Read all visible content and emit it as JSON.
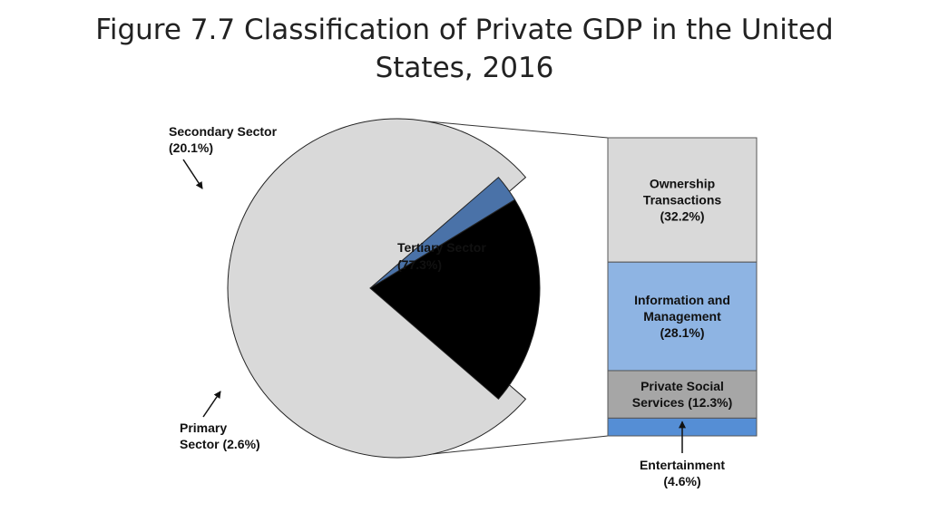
{
  "title": {
    "line1": "Figure 7.7 Classification of Private GDP in the United",
    "line2": "States, 2016"
  },
  "chart_data": [
    {
      "type": "pie",
      "slices": [
        {
          "name": "Tertiary Sector",
          "value": 77.3,
          "label_name": "Tertiary Sector",
          "label_value": "(77.3%)",
          "color": "#d9d9d9"
        },
        {
          "name": "Secondary Sector",
          "value": 20.1,
          "label_name": "Secondary Sector",
          "label_value": "(20.1%)",
          "color": "#000000"
        },
        {
          "name": "Primary Sector",
          "value": 2.6,
          "label_name": "Primary",
          "label_value": "Sector (2.6%)",
          "color": "#4a72a8"
        }
      ],
      "exploded": [
        "Secondary Sector",
        "Primary Sector"
      ]
    },
    {
      "type": "bar",
      "stacked": true,
      "detail_of": "Tertiary Sector",
      "segments": [
        {
          "name": "Ownership Transactions",
          "value": 32.2,
          "lines": [
            "Ownership",
            "Transactions",
            "(32.2%)"
          ],
          "color": "#d9d9d9"
        },
        {
          "name": "Information and Management",
          "value": 28.1,
          "lines": [
            "Information and",
            "Management",
            "(28.1%)"
          ],
          "color": "#8eb4e3"
        },
        {
          "name": "Private Social Services",
          "value": 12.3,
          "lines": [
            "Private Social",
            "Services (12.3%)"
          ],
          "color": "#a6a6a6"
        },
        {
          "name": "Entertainment",
          "value": 4.6,
          "lines": [
            "Entertainment",
            "(4.6%)"
          ],
          "color": "#558ed5"
        }
      ]
    }
  ]
}
